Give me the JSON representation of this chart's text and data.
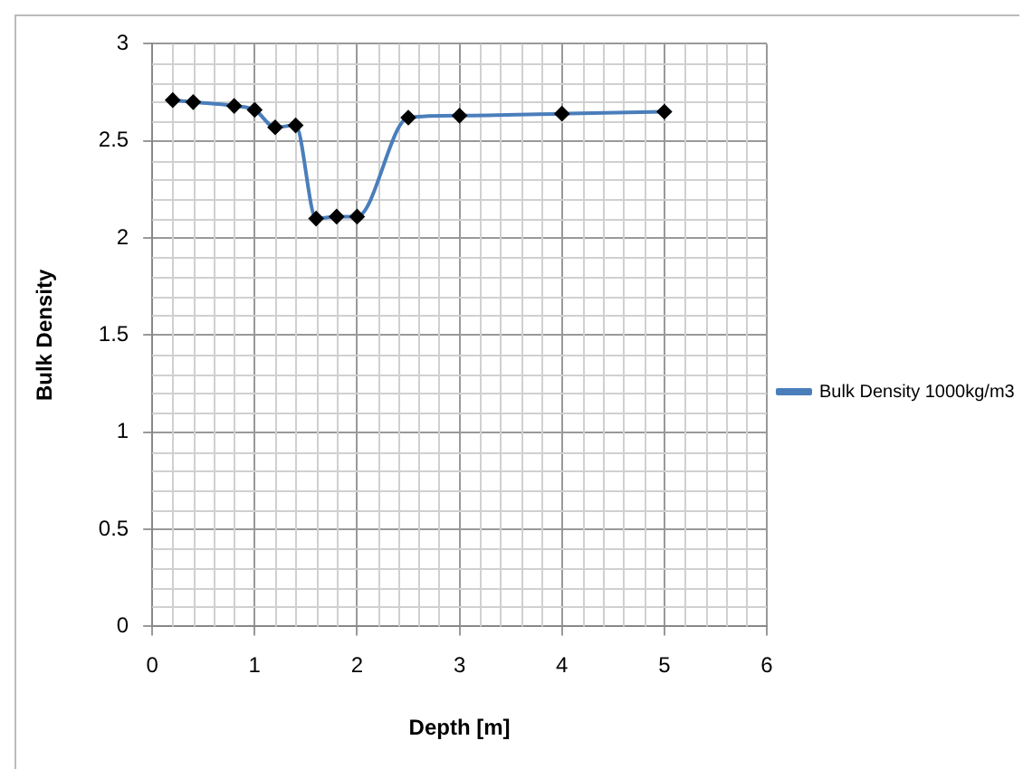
{
  "chart_data": {
    "type": "line",
    "xlabel": "Depth [m]",
    "ylabel": "Bulk Density",
    "xlim": [
      0,
      6
    ],
    "xticks": [
      0,
      1,
      2,
      3,
      4,
      5,
      6
    ],
    "ylim": [
      0,
      3
    ],
    "yticks": [
      0,
      0.5,
      1,
      1.5,
      2,
      2.5,
      3
    ],
    "series": [
      {
        "name": "Bulk Density 1000kg/m3",
        "color": "#4a7ebb",
        "x": [
          0.2,
          0.4,
          0.8,
          1.0,
          1.2,
          1.4,
          1.6,
          1.8,
          2.0,
          2.5,
          3,
          4,
          5
        ],
        "values": [
          2.71,
          2.7,
          2.68,
          2.66,
          2.57,
          2.58,
          2.1,
          2.11,
          2.11,
          2.62,
          2.63,
          2.64,
          2.65
        ]
      }
    ],
    "marker": "diamond",
    "line_style": "solid",
    "grid": true,
    "legend": "right"
  }
}
